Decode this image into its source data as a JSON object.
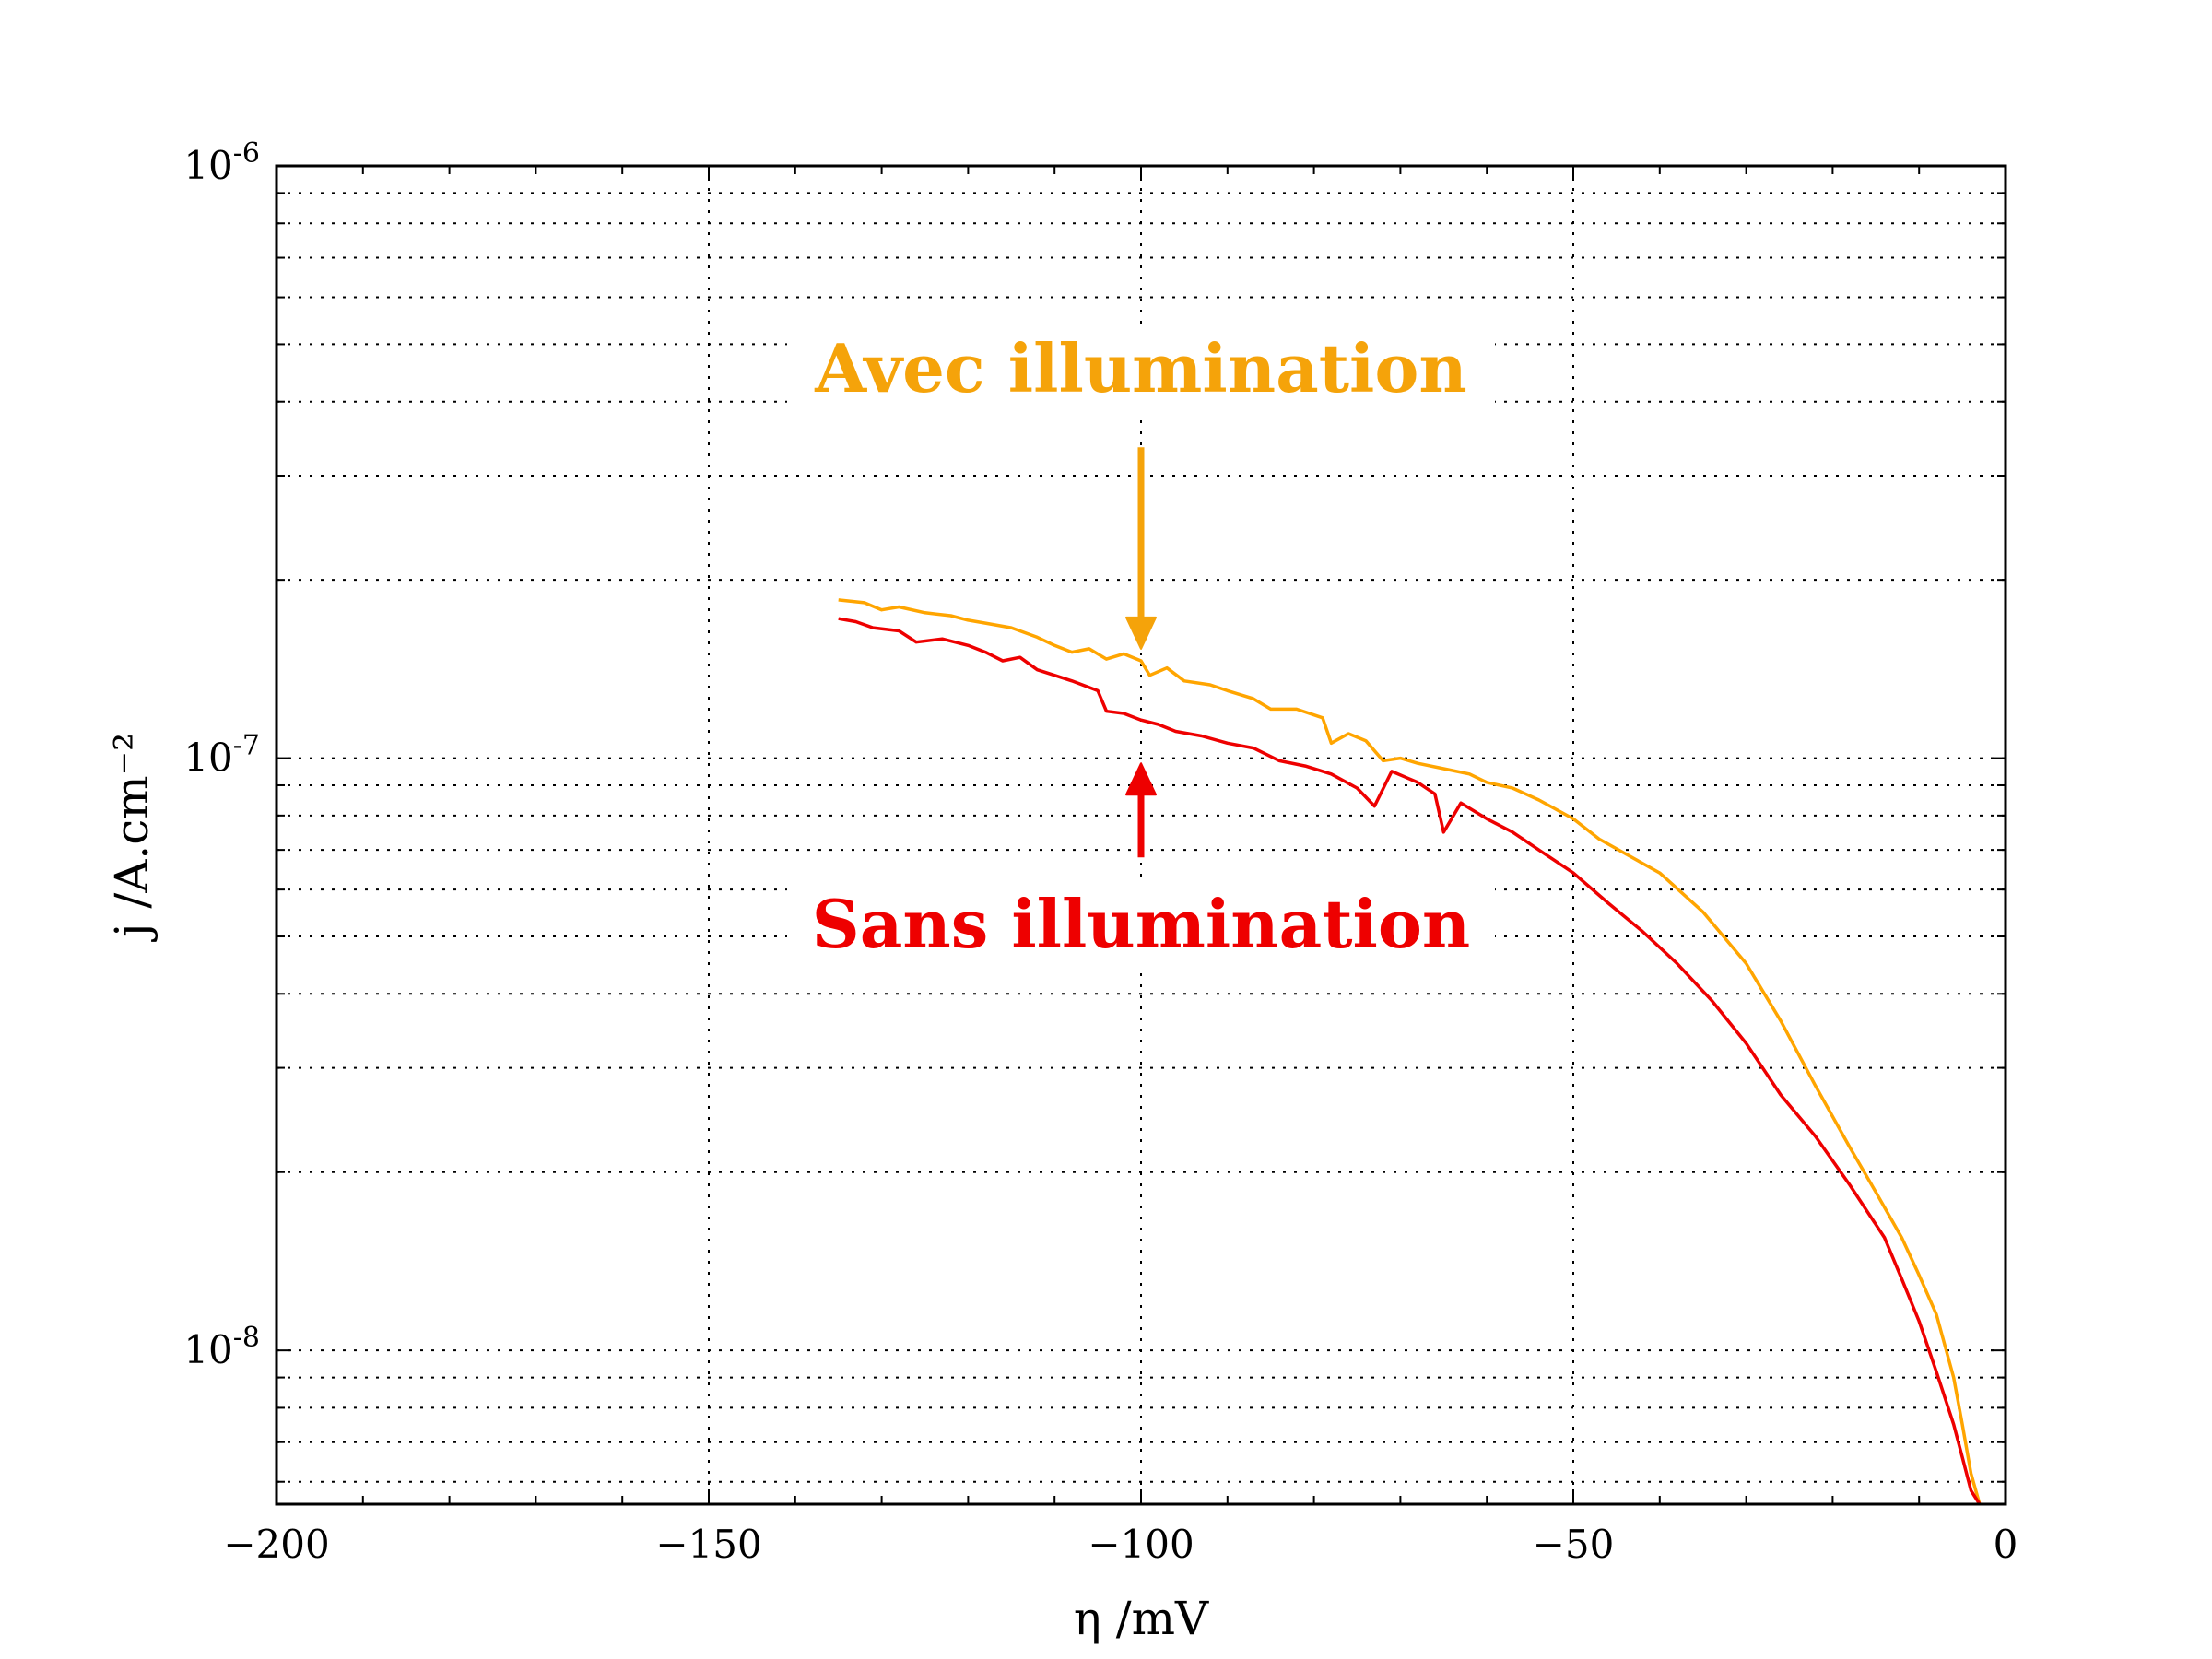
{
  "chart_data": {
    "type": "line",
    "title": "",
    "xlabel": "η /mV",
    "ylabel": "j /A.cm⁻²",
    "xlim": [
      -200,
      0
    ],
    "ylim": [
      5.5e-09,
      1e-06
    ],
    "yscale": "log",
    "grid": true,
    "x_ticks": [
      {
        "value": -200,
        "label": "−200"
      },
      {
        "value": -150,
        "label": "−150"
      },
      {
        "value": -100,
        "label": "−100"
      },
      {
        "value": -50,
        "label": "−50"
      },
      {
        "value": 0,
        "label": "0"
      }
    ],
    "y_ticks": [
      {
        "value": 1e-08,
        "base": "10",
        "exp": "-8"
      },
      {
        "value": 1e-07,
        "base": "10",
        "exp": "-7"
      },
      {
        "value": 1e-06,
        "base": "10",
        "exp": "-6"
      }
    ],
    "series": [
      {
        "color": "#FFA500",
        "points": [
          [
            -135,
            1.85e-07
          ],
          [
            -132,
            1.83e-07
          ],
          [
            -130,
            1.78e-07
          ],
          [
            -128,
            1.8e-07
          ],
          [
            -125,
            1.76e-07
          ],
          [
            -122,
            1.74e-07
          ],
          [
            -120,
            1.71e-07
          ],
          [
            -118,
            1.69e-07
          ],
          [
            -115,
            1.66e-07
          ],
          [
            -112,
            1.6e-07
          ],
          [
            -110,
            1.55e-07
          ],
          [
            -108,
            1.51e-07
          ],
          [
            -106,
            1.53e-07
          ],
          [
            -104,
            1.47e-07
          ],
          [
            -102,
            1.5e-07
          ],
          [
            -100,
            1.46e-07
          ],
          [
            -99,
            1.38e-07
          ],
          [
            -97,
            1.42e-07
          ],
          [
            -95,
            1.35e-07
          ],
          [
            -92,
            1.33e-07
          ],
          [
            -90,
            1.3e-07
          ],
          [
            -87,
            1.26e-07
          ],
          [
            -85,
            1.21e-07
          ],
          [
            -82,
            1.21e-07
          ],
          [
            -79,
            1.17e-07
          ],
          [
            -78,
            1.06e-07
          ],
          [
            -76,
            1.1e-07
          ],
          [
            -74,
            1.07e-07
          ],
          [
            -72,
            9.9e-08
          ],
          [
            -70,
            1e-07
          ],
          [
            -68,
            9.8e-08
          ],
          [
            -65,
            9.6e-08
          ],
          [
            -62,
            9.4e-08
          ],
          [
            -60,
            9.1e-08
          ],
          [
            -57,
            8.9e-08
          ],
          [
            -54,
            8.5e-08
          ],
          [
            -50,
            7.9e-08
          ],
          [
            -47,
            7.3e-08
          ],
          [
            -44,
            6.9e-08
          ],
          [
            -40,
            6.4e-08
          ],
          [
            -35,
            5.5e-08
          ],
          [
            -30,
            4.5e-08
          ],
          [
            -26,
            3.6e-08
          ],
          [
            -22,
            2.8e-08
          ],
          [
            -18,
            2.2e-08
          ],
          [
            -15,
            1.85e-08
          ],
          [
            -12,
            1.55e-08
          ],
          [
            -10,
            1.34e-08
          ],
          [
            -8,
            1.15e-08
          ],
          [
            -6,
            9e-09
          ],
          [
            -5,
            7.5e-09
          ],
          [
            -4,
            6.2e-09
          ],
          [
            -3,
            5.5e-09
          ]
        ]
      },
      {
        "color": "#EE0000",
        "points": [
          [
            -135,
            1.72e-07
          ],
          [
            -133,
            1.7e-07
          ],
          [
            -131,
            1.66e-07
          ],
          [
            -128,
            1.64e-07
          ],
          [
            -126,
            1.57e-07
          ],
          [
            -123,
            1.59e-07
          ],
          [
            -120,
            1.55e-07
          ],
          [
            -118,
            1.51e-07
          ],
          [
            -116,
            1.46e-07
          ],
          [
            -114,
            1.48e-07
          ],
          [
            -112,
            1.41e-07
          ],
          [
            -110,
            1.38e-07
          ],
          [
            -108,
            1.35e-07
          ],
          [
            -105,
            1.3e-07
          ],
          [
            -104,
            1.2e-07
          ],
          [
            -102,
            1.19e-07
          ],
          [
            -100,
            1.16e-07
          ],
          [
            -98,
            1.14e-07
          ],
          [
            -96,
            1.11e-07
          ],
          [
            -93,
            1.09e-07
          ],
          [
            -90,
            1.06e-07
          ],
          [
            -87,
            1.04e-07
          ],
          [
            -84,
            9.9e-08
          ],
          [
            -81,
            9.7e-08
          ],
          [
            -78,
            9.4e-08
          ],
          [
            -75,
            8.9e-08
          ],
          [
            -73,
            8.3e-08
          ],
          [
            -71,
            9.5e-08
          ],
          [
            -68,
            9.1e-08
          ],
          [
            -66,
            8.7e-08
          ],
          [
            -65,
            7.5e-08
          ],
          [
            -63,
            8.4e-08
          ],
          [
            -60,
            7.9e-08
          ],
          [
            -57,
            7.5e-08
          ],
          [
            -54,
            7e-08
          ],
          [
            -50,
            6.4e-08
          ],
          [
            -46,
            5.7e-08
          ],
          [
            -42,
            5.1e-08
          ],
          [
            -38,
            4.5e-08
          ],
          [
            -34,
            3.9e-08
          ],
          [
            -30,
            3.3e-08
          ],
          [
            -26,
            2.7e-08
          ],
          [
            -22,
            2.3e-08
          ],
          [
            -18,
            1.9e-08
          ],
          [
            -14,
            1.55e-08
          ],
          [
            -12,
            1.32e-08
          ],
          [
            -10,
            1.12e-08
          ],
          [
            -8,
            9.2e-09
          ],
          [
            -6,
            7.5e-09
          ],
          [
            -5,
            6.6e-09
          ],
          [
            -4,
            5.8e-09
          ],
          [
            -3,
            5.5e-09
          ]
        ]
      }
    ],
    "annotations": [
      {
        "text": "Avec illumination",
        "color": "#F5A30A",
        "label_x": -100,
        "arrow_from": 3.35e-07,
        "arrow_to": 1.53e-07
      },
      {
        "text": "Sans illumination",
        "color": "#EE0000",
        "label_x": -100,
        "arrow_from": 6.8e-08,
        "arrow_to": 9.8e-08
      }
    ]
  }
}
